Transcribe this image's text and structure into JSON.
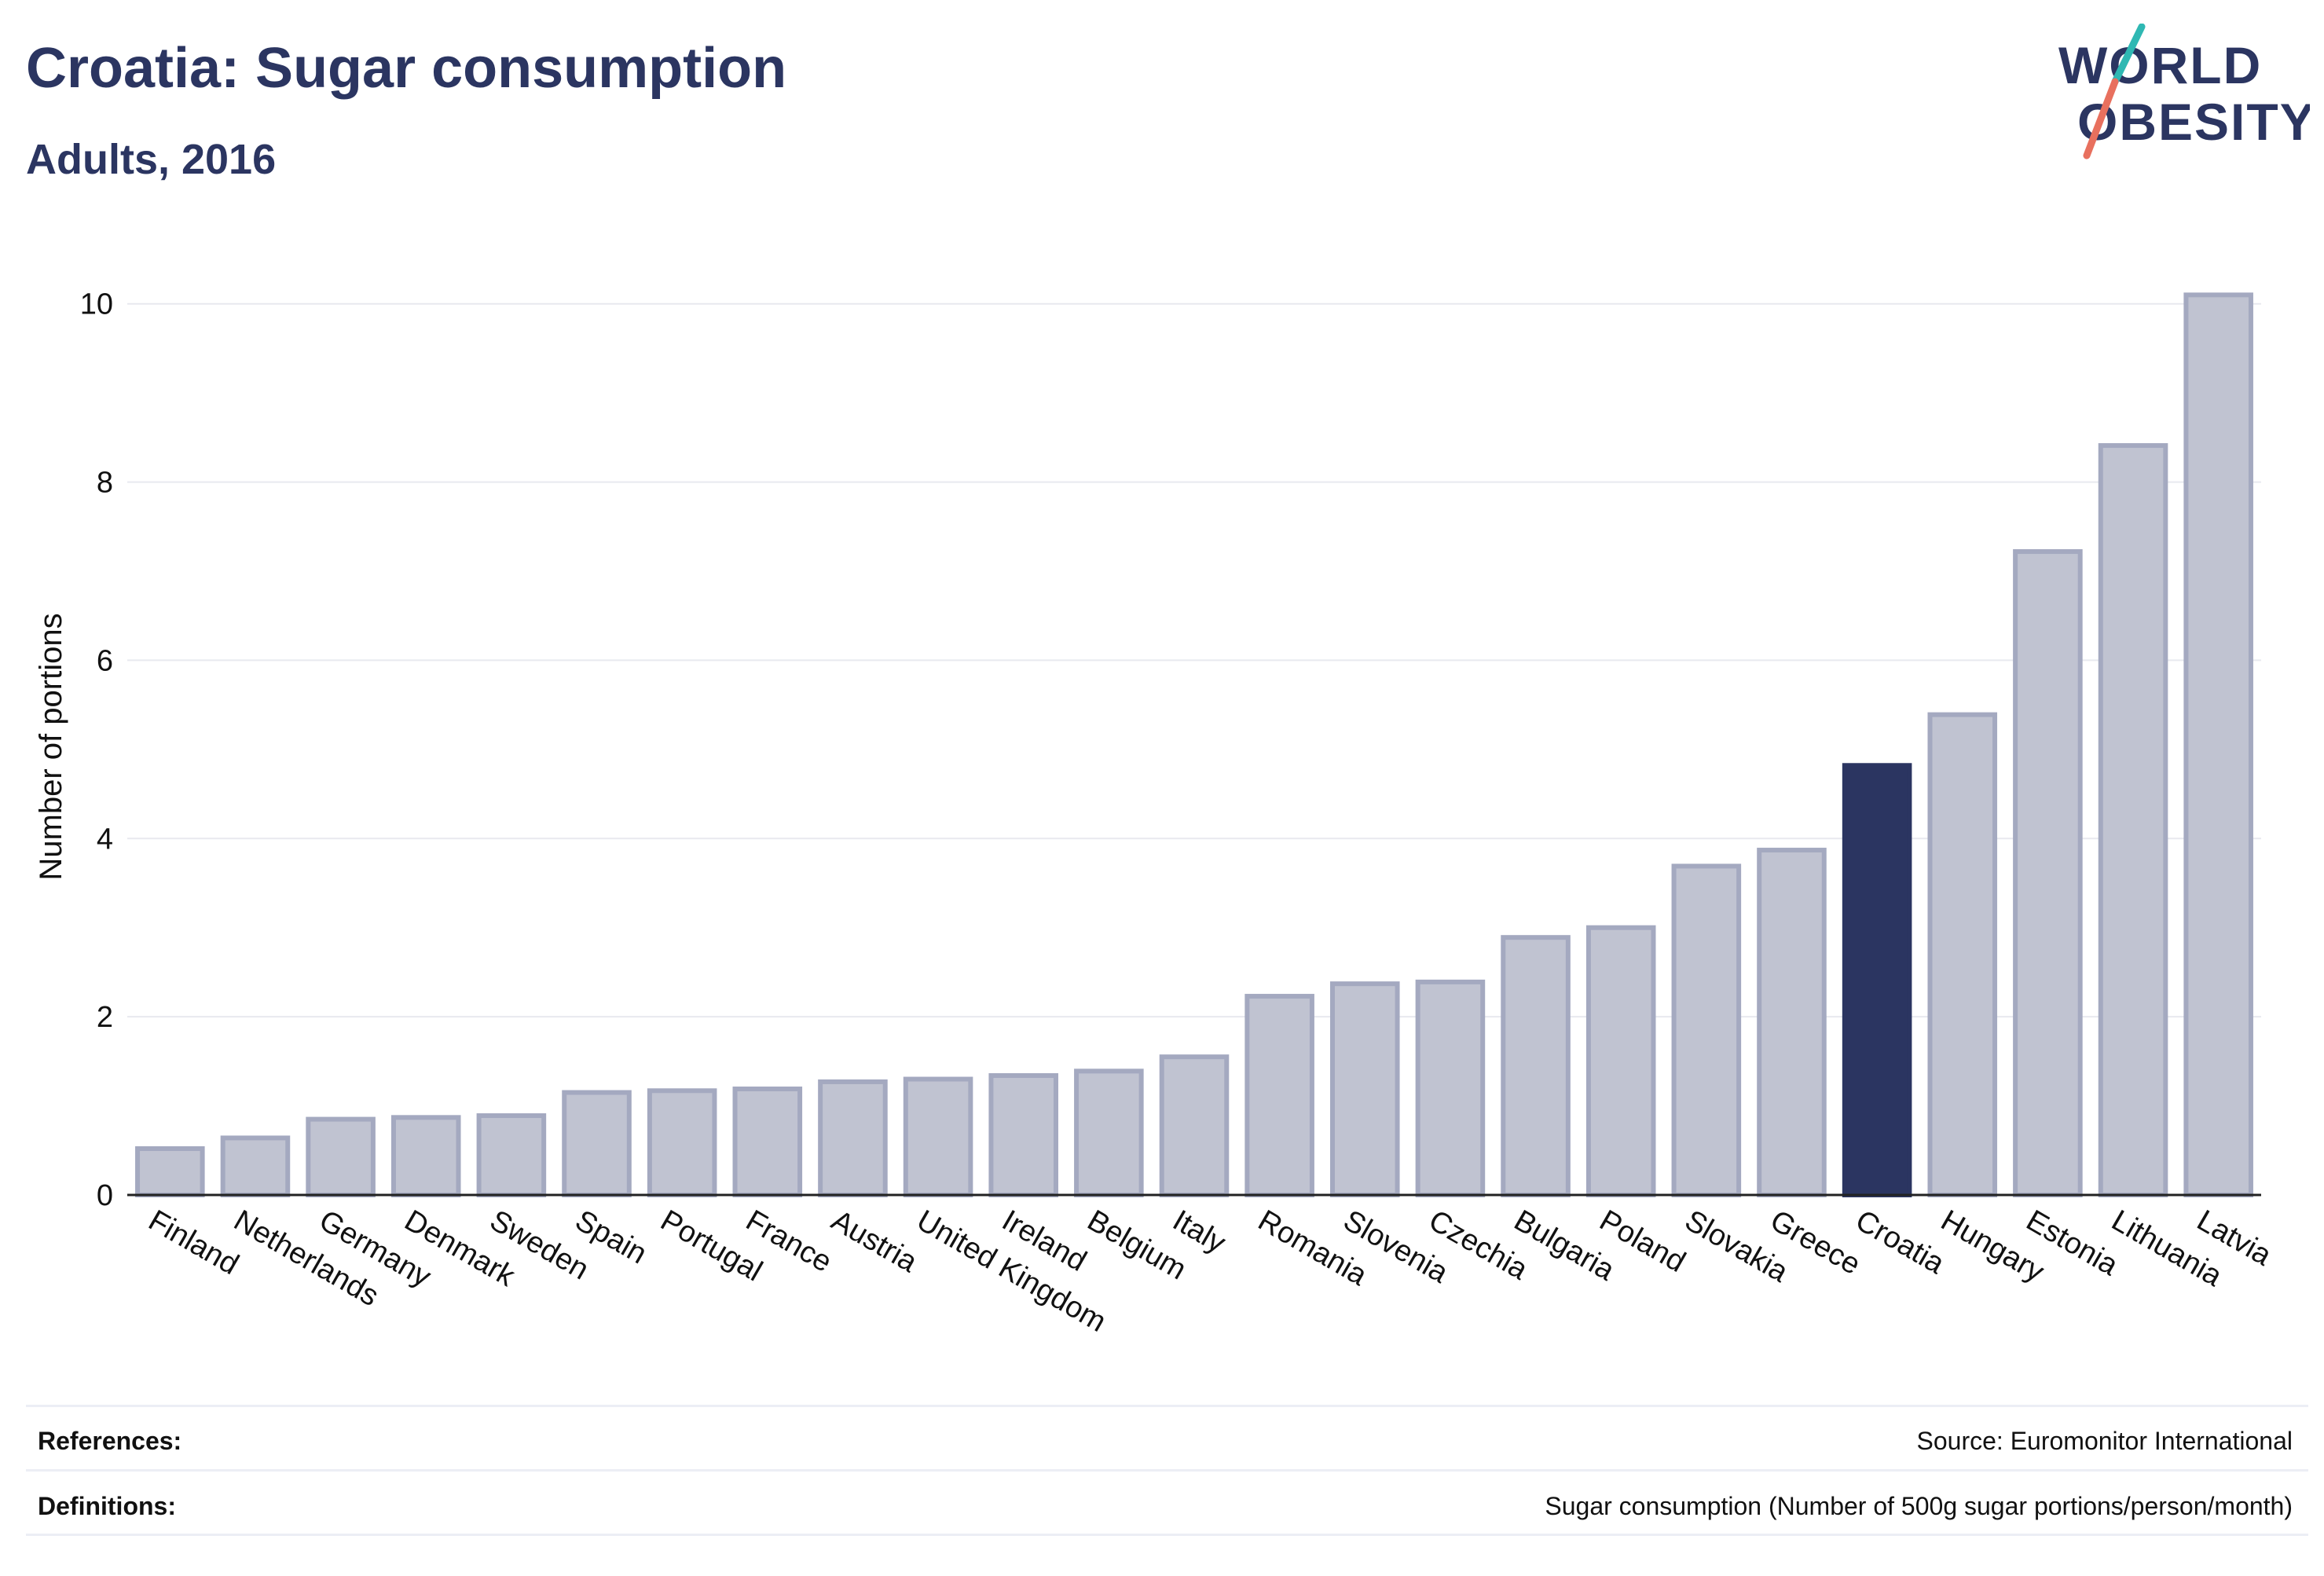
{
  "header": {
    "title": "Croatia: Sugar consumption",
    "subtitle": "Adults, 2016"
  },
  "logo": {
    "line1": "WORLD",
    "line2": "OBESITY",
    "accent_teal": "#2fb8b3",
    "accent_coral": "#e8705e"
  },
  "chart_data": {
    "type": "bar",
    "ylabel": "Number of portions",
    "xlabel": "",
    "ylim": [
      0,
      10.5
    ],
    "yticks": [
      0,
      2,
      4,
      6,
      8,
      10
    ],
    "grid": true,
    "highlight": "Croatia",
    "colors": {
      "bar": "#c0c3d1",
      "bar_border": "#a4a9c0",
      "highlight": "#2b3561",
      "grid": "#e8e9ef",
      "axis": "#222222"
    },
    "categories": [
      "Finland",
      "Netherlands",
      "Germany",
      "Denmark",
      "Sweden",
      "Spain",
      "Portugal",
      "France",
      "Austria",
      "United Kingdom",
      "Ireland",
      "Belgium",
      "Italy",
      "Romania",
      "Slovenia",
      "Czechia",
      "Bulgaria",
      "Poland",
      "Slovakia",
      "Greece",
      "Croatia",
      "Hungary",
      "Estonia",
      "Lithuania",
      "Latvia"
    ],
    "values": [
      0.52,
      0.64,
      0.85,
      0.87,
      0.89,
      1.15,
      1.17,
      1.19,
      1.27,
      1.3,
      1.34,
      1.39,
      1.55,
      2.23,
      2.37,
      2.39,
      2.89,
      3.0,
      3.69,
      3.87,
      4.82,
      5.39,
      7.22,
      8.41,
      10.1
    ]
  },
  "footer": {
    "references_label": "References:",
    "references_value": "Source: Euromonitor International",
    "definitions_label": "Definitions:",
    "definitions_value": "Sugar consumption (Number of 500g sugar portions/person/month)"
  }
}
